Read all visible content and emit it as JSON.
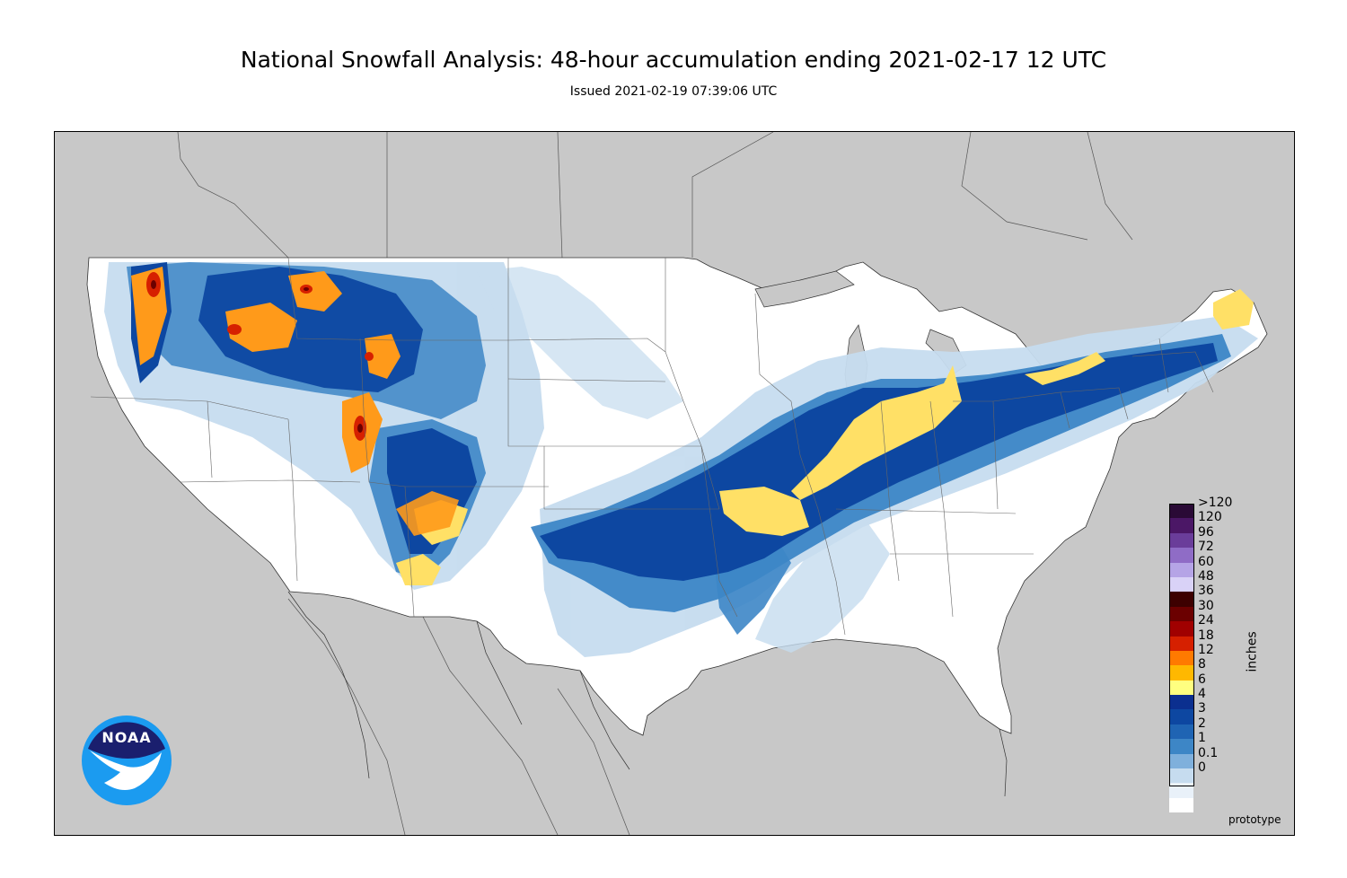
{
  "title": "National Snowfall Analysis: 48-hour accumulation ending 2021-02-17 12 UTC",
  "subtitle": "Issued 2021-02-19 07:39:06 UTC",
  "legend": {
    "units": "inches",
    "entries": [
      {
        "label": ">120",
        "color": "#2a0a36"
      },
      {
        "label": "120",
        "color": "#4b1766"
      },
      {
        "label": "96",
        "color": "#6a3d9a"
      },
      {
        "label": "72",
        "color": "#8f6cc6"
      },
      {
        "label": "60",
        "color": "#b5a4e6"
      },
      {
        "label": "48",
        "color": "#d9d2f7"
      },
      {
        "label": "36",
        "color": "#3d0000"
      },
      {
        "label": "30",
        "color": "#6b0000"
      },
      {
        "label": "24",
        "color": "#a00000"
      },
      {
        "label": "18",
        "color": "#d62000"
      },
      {
        "label": "12",
        "color": "#ff7a00"
      },
      {
        "label": "8",
        "color": "#ffb800"
      },
      {
        "label": "6",
        "color": "#ffff80"
      },
      {
        "label": "4",
        "color": "#0b2f8f"
      },
      {
        "label": "3",
        "color": "#0d47a1"
      },
      {
        "label": "2",
        "color": "#1f64b3"
      },
      {
        "label": "1",
        "color": "#3d86c6"
      },
      {
        "label": "0.1",
        "color": "#7fb0dc"
      },
      {
        "label": "0",
        "color": "#c6dcef"
      },
      {
        "label": "",
        "color": "#e9f1f9"
      },
      {
        "label": "",
        "color": "#ffffff"
      }
    ]
  },
  "footer_note": "prototype",
  "logo": {
    "text": "NOAA"
  },
  "colors": {
    "land_outside": "#c8c8c8",
    "conus_base": "#ffffff",
    "light_blue": "#c6dcef",
    "mid_blue": "#3d86c6",
    "dark_blue": "#0d47a1",
    "deep_blue": "#0b2f8f",
    "yellow": "#ffdb4d",
    "orange": "#ff9a1a",
    "red": "#d62000"
  }
}
